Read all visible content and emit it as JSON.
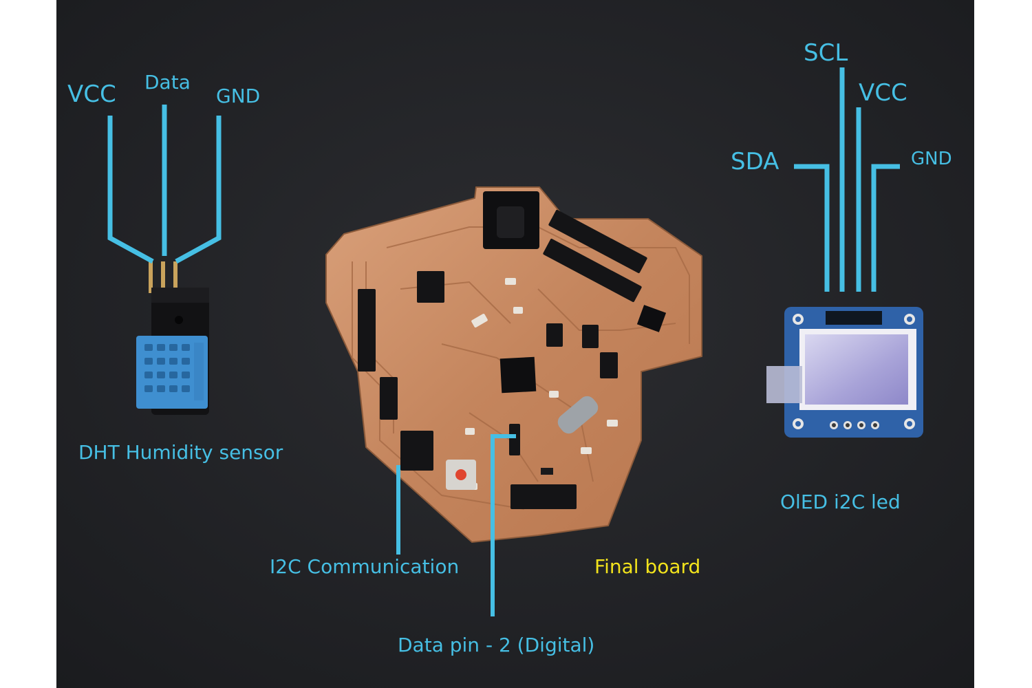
{
  "colors": {
    "background": "#222326",
    "label_blue": "#46bfe4",
    "label_yellow": "#f2e31c",
    "copper": "#c98b63",
    "sensor_blue": "#3f8fd0"
  },
  "dht": {
    "pin_vcc": "VCC",
    "pin_data": "Data",
    "pin_gnd": "GND",
    "caption": "DHT Humidity sensor"
  },
  "oled": {
    "pin_scl": "SCL",
    "pin_vcc": "VCC",
    "pin_sda": "SDA",
    "pin_gnd": "GND",
    "caption": "OlED i2C led"
  },
  "board": {
    "i2c_label": "I2C Communication",
    "final_label": "Final board",
    "data_pin_label": "Data pin - 2 (Digital)"
  }
}
